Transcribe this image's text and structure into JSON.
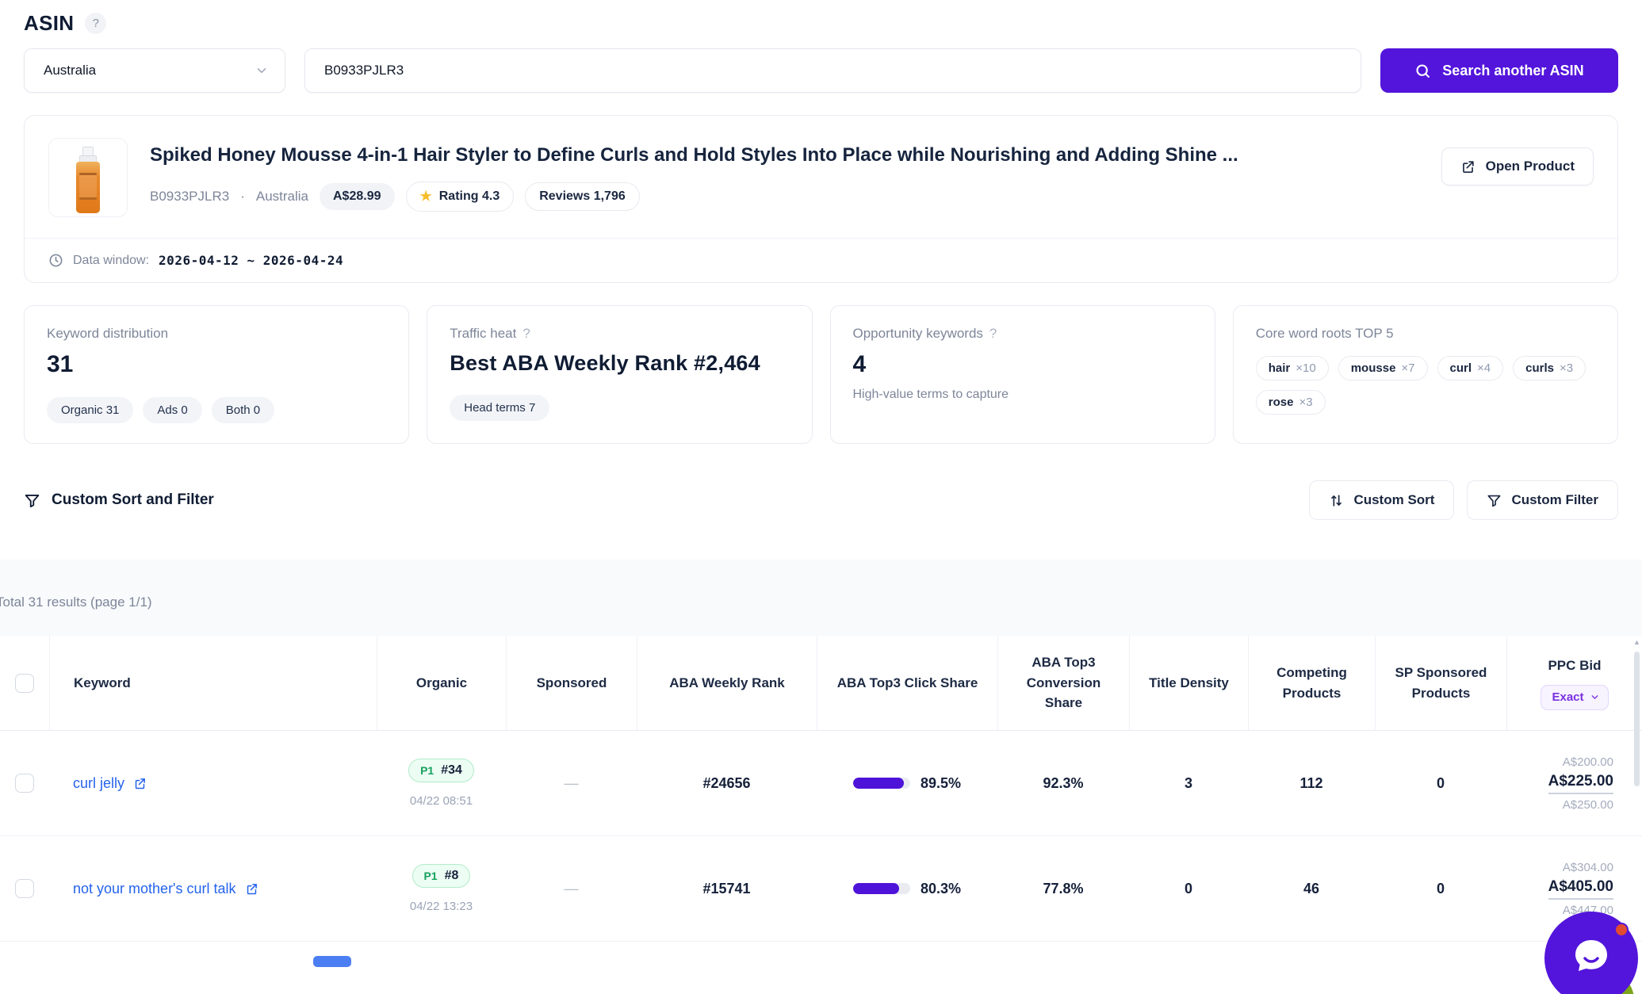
{
  "header": {
    "title": "ASIN",
    "help": "?"
  },
  "search": {
    "country": "Australia",
    "asin": "B0933PJLR3",
    "button": "Search another ASIN"
  },
  "product": {
    "title": "Spiked Honey Mousse 4-in-1 Hair Styler to Define Curls and Hold Styles Into Place while Nourishing and Adding Shine ...",
    "asin": "B0933PJLR3",
    "dot": "·",
    "marketplace": "Australia",
    "price": "A$28.99",
    "star": "★",
    "rating": "Rating 4.3",
    "reviews": "Reviews 1,796",
    "open_button": "Open Product",
    "data_window_label": "Data window:",
    "data_window_value": "2026-04-12 ~ 2026-04-24"
  },
  "stats": {
    "distribution": {
      "label": "Keyword distribution",
      "value": "31",
      "tags": [
        "Organic 31",
        "Ads 0",
        "Both 0"
      ]
    },
    "traffic": {
      "label": "Traffic heat",
      "help": "?",
      "value": "Best ABA Weekly Rank #2,464",
      "tag": "Head terms 7"
    },
    "opportunity": {
      "label": "Opportunity keywords",
      "help": "?",
      "value": "4",
      "caption": "High-value terms to capture"
    },
    "roots": {
      "label": "Core word roots TOP 5",
      "tags": [
        {
          "word": "hair",
          "count": "×10"
        },
        {
          "word": "mousse",
          "count": "×7"
        },
        {
          "word": "curl",
          "count": "×4"
        },
        {
          "word": "curls",
          "count": "×3"
        },
        {
          "word": "rose",
          "count": "×3"
        }
      ]
    }
  },
  "toolbar": {
    "title": "Custom Sort and Filter",
    "sort": "Custom Sort",
    "filter": "Custom Filter"
  },
  "table": {
    "summary": "Total 31 results (page 1/1)",
    "columns": {
      "keyword": "Keyword",
      "organic": "Organic",
      "sponsored": "Sponsored",
      "aba_rank": "ABA Weekly Rank",
      "click": "ABA Top3 Click Share",
      "conversion": "ABA Top3 Conversion Share",
      "density": "Title Density",
      "competing": "Competing Products",
      "sp": "SP Sponsored Products",
      "ppc": "PPC Bid"
    },
    "ppc_filter": "Exact",
    "rows": [
      {
        "keyword": "curl jelly",
        "pos": "P1",
        "rank": "#34",
        "time": "04/22 08:51",
        "sponsored": "—",
        "aba": "#24656",
        "click": "89.5%",
        "click_pct": 89.5,
        "conversion": "92.3%",
        "density": "3",
        "competing": "112",
        "sp": "0",
        "ppc_low": "A$200.00",
        "ppc_mid": "A$225.00",
        "ppc_high": "A$250.00"
      },
      {
        "keyword": "not your mother's curl talk",
        "pos": "P1",
        "rank": "#8",
        "time": "04/22 13:23",
        "sponsored": "—",
        "aba": "#15741",
        "click": "80.3%",
        "click_pct": 80.3,
        "conversion": "77.8%",
        "density": "0",
        "competing": "46",
        "sp": "0",
        "ppc_low": "A$304.00",
        "ppc_mid": "A$405.00",
        "ppc_high": "A$447.00"
      }
    ]
  }
}
